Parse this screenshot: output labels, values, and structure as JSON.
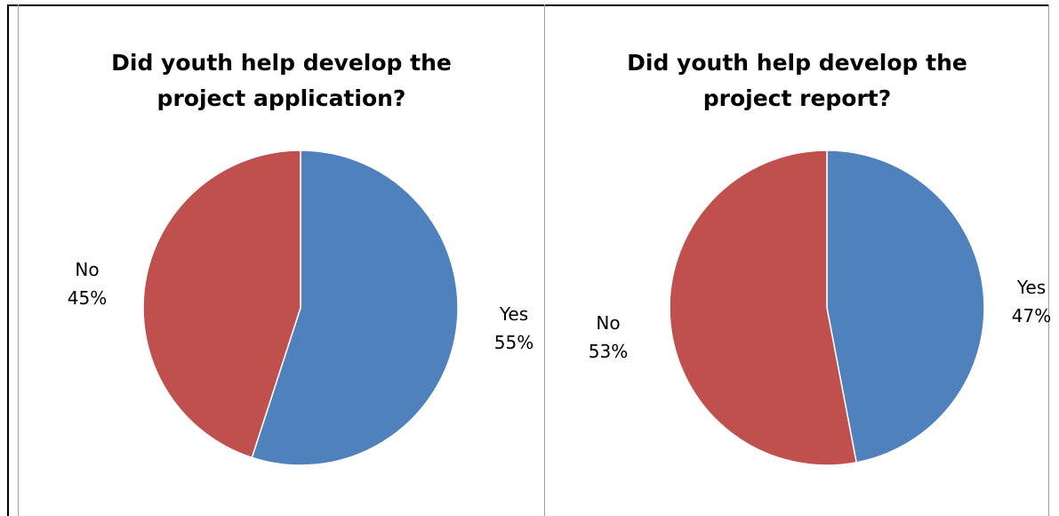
{
  "colors": {
    "yes": "#4f81bd",
    "no": "#c0504d",
    "grid": "#9e9e9e",
    "frame": "#000000"
  },
  "chart_data": [
    {
      "type": "pie",
      "title": "Did youth help develop the project application?",
      "title_lines": [
        "Did youth help develop the",
        "project application?"
      ],
      "slices": [
        {
          "label": "Yes",
          "percent_label": "55%",
          "value": 55,
          "color": "#4f81bd"
        },
        {
          "label": "No",
          "percent_label": "45%",
          "value": 45,
          "color": "#c0504d"
        }
      ],
      "legend": "none"
    },
    {
      "type": "pie",
      "title": "Did youth help develop the project report?",
      "title_lines": [
        "Did youth help develop the",
        "project report?"
      ],
      "slices": [
        {
          "label": "Yes",
          "percent_label": "47%",
          "value": 47,
          "color": "#4f81bd"
        },
        {
          "label": "No",
          "percent_label": "53%",
          "value": 53,
          "color": "#c0504d"
        }
      ],
      "legend": "none"
    }
  ]
}
